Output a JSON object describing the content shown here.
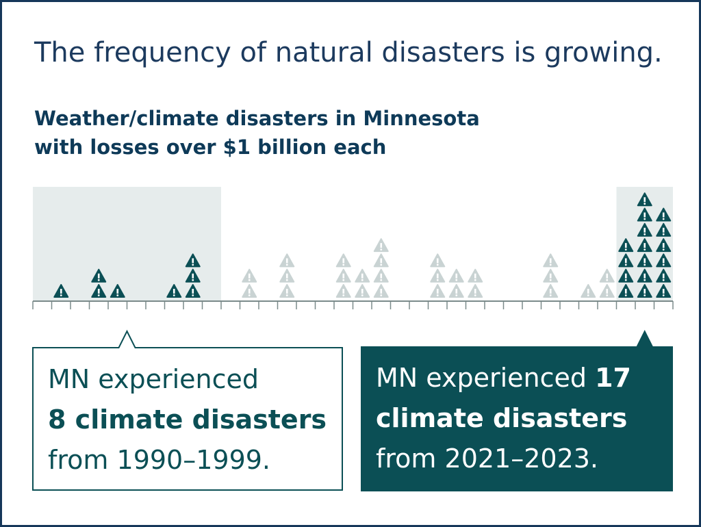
{
  "chart_data": {
    "type": "pictograph",
    "title": "The frequency of natural disasters is growing.",
    "subtitle_lines": [
      "Weather/climate disasters in Minnesota",
      "with losses over $1 billion each"
    ],
    "values": [
      0,
      1,
      0,
      2,
      1,
      0,
      0,
      1,
      3,
      0,
      0,
      2,
      0,
      3,
      0,
      0,
      3,
      2,
      4,
      0,
      0,
      3,
      2,
      2,
      0,
      0,
      0,
      3,
      0,
      1,
      2,
      4,
      7,
      6
    ],
    "highlight_ranges": [
      [
        0,
        9
      ],
      [
        31,
        33
      ]
    ],
    "color": "#0b4f55",
    "muted_color": "#c9d3d3",
    "highlight_background": "#e6ecec",
    "callouts": [
      {
        "range": 0,
        "style": "outline",
        "lines": [
          [
            {
              "text": "MN experienced",
              "bold": false
            }
          ],
          [
            {
              "text": "8 climate disasters",
              "bold": true
            }
          ],
          [
            {
              "text": "from 1990–1999.",
              "bold": false
            }
          ]
        ]
      },
      {
        "range": 1,
        "style": "filled",
        "lines": [
          [
            {
              "text": "MN experienced ",
              "bold": false
            },
            {
              "text": "17",
              "bold": true
            }
          ],
          [
            {
              "text": "climate disasters",
              "bold": true
            }
          ],
          [
            {
              "text": "from 2021–2023.",
              "bold": false
            }
          ]
        ]
      }
    ]
  }
}
